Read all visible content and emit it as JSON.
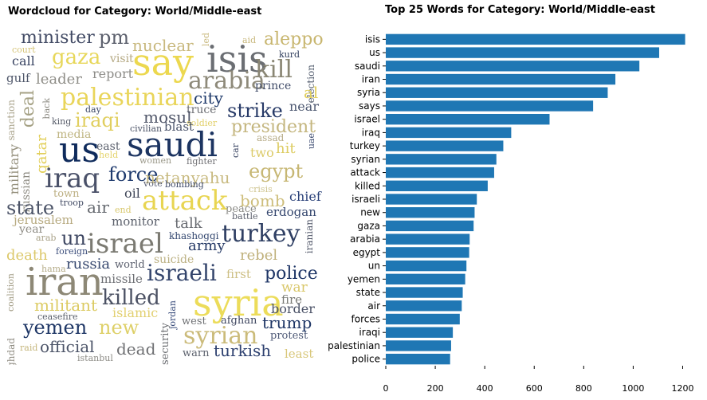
{
  "chart_data": [
    {
      "type": "wordcloud",
      "title": "Wordcloud for Category: World/Middle-east",
      "words": [
        {
          "text": "minister",
          "color": "#414a64"
        },
        {
          "text": "pm",
          "color": "#5b5f6c"
        },
        {
          "text": "nuclear",
          "color": "#c9b97f"
        },
        {
          "text": "led",
          "color": "#c9b97f"
        },
        {
          "text": "aid",
          "color": "#c9b97f"
        },
        {
          "text": "aleppo",
          "color": "#c8b66f"
        },
        {
          "text": "court",
          "color": "#d6c57a"
        },
        {
          "text": "gaza",
          "color": "#e7d75a"
        },
        {
          "text": "visit",
          "color": "#b4a882"
        },
        {
          "text": "say",
          "color": "#ecd84f"
        },
        {
          "text": "isis",
          "color": "#6b6e73"
        },
        {
          "text": "kurd",
          "color": "#2f3d5c"
        },
        {
          "text": "call",
          "color": "#3a4563"
        },
        {
          "text": "report",
          "color": "#8d8c88"
        },
        {
          "text": "kill",
          "color": "#8a8674"
        },
        {
          "text": "gulf",
          "color": "#4f576a"
        },
        {
          "text": "leader",
          "color": "#8f8e88"
        },
        {
          "text": "arabia",
          "color": "#8e8a7a"
        },
        {
          "text": "prince",
          "color": "#3f4b68"
        },
        {
          "text": "election",
          "color": "#4d5769"
        },
        {
          "text": "deal",
          "color": "#a5a184"
        },
        {
          "text": "palestinian",
          "color": "#e9d55a"
        },
        {
          "text": "city",
          "color": "#1f3a6b"
        },
        {
          "text": "al",
          "color": "#e2cf5d"
        },
        {
          "text": "sanction",
          "color": "#a8a28a"
        },
        {
          "text": "back",
          "color": "#8e8c84"
        },
        {
          "text": "day",
          "color": "#3a4665"
        },
        {
          "text": "truce",
          "color": "#6e7075"
        },
        {
          "text": "strike",
          "color": "#273a67"
        },
        {
          "text": "near",
          "color": "#4c5770"
        },
        {
          "text": "king",
          "color": "#585d6a"
        },
        {
          "text": "iraqi",
          "color": "#e1cf60"
        },
        {
          "text": "mosul",
          "color": "#51576a"
        },
        {
          "text": "soldier",
          "color": "#e2d06a"
        },
        {
          "text": "president",
          "color": "#c4b67f"
        },
        {
          "text": "qatar",
          "color": "#e2cf5a"
        },
        {
          "text": "civilian",
          "color": "#4d5568"
        },
        {
          "text": "blast",
          "color": "#4b546b"
        },
        {
          "text": "us",
          "color": "#0f2b5c"
        },
        {
          "text": "media",
          "color": "#bfb582"
        },
        {
          "text": "saudi",
          "color": "#1c3461"
        },
        {
          "text": "assad",
          "color": "#b6ab86"
        },
        {
          "text": "uae",
          "color": "#3b4a70"
        },
        {
          "text": "military",
          "color": "#948f7c"
        },
        {
          "text": "east",
          "color": "#5a5f6c"
        },
        {
          "text": "held",
          "color": "#e4d36a"
        },
        {
          "text": "car",
          "color": "#404a67"
        },
        {
          "text": "two",
          "color": "#dccb6a"
        },
        {
          "text": "hit",
          "color": "#ddcc62"
        },
        {
          "text": "women",
          "color": "#9a9889"
        },
        {
          "text": "fighter",
          "color": "#6f6f73"
        },
        {
          "text": "russian",
          "color": "#8d8b82"
        },
        {
          "text": "iraq",
          "color": "#4a5169"
        },
        {
          "text": "force",
          "color": "#1f3b6e"
        },
        {
          "text": "netanyahu",
          "color": "#c8ba80"
        },
        {
          "text": "egypt",
          "color": "#c7b774"
        },
        {
          "text": "vote",
          "color": "#5a6075"
        },
        {
          "text": "bombing",
          "color": "#3e4967"
        },
        {
          "text": "town",
          "color": "#bdb083"
        },
        {
          "text": "oil",
          "color": "#3f4557"
        },
        {
          "text": "attack",
          "color": "#e8d552"
        },
        {
          "text": "crisis",
          "color": "#cfc48f"
        },
        {
          "text": "chief",
          "color": "#2b427a"
        },
        {
          "text": "state",
          "color": "#4c5468"
        },
        {
          "text": "troop",
          "color": "#414a63"
        },
        {
          "text": "air",
          "color": "#666a70"
        },
        {
          "text": "end",
          "color": "#d8c86e"
        },
        {
          "text": "bomb",
          "color": "#cdbd7a"
        },
        {
          "text": "jerusalem",
          "color": "#b7aa80"
        },
        {
          "text": "peace",
          "color": "#8a8a86"
        },
        {
          "text": "monitor",
          "color": "#5c616c"
        },
        {
          "text": "talk",
          "color": "#676a70"
        },
        {
          "text": "battle",
          "color": "#5c606c"
        },
        {
          "text": "erdogan",
          "color": "#34466e"
        },
        {
          "text": "year",
          "color": "#8f8d86"
        },
        {
          "text": "arab",
          "color": "#a9a289"
        },
        {
          "text": "un",
          "color": "#3e4762"
        },
        {
          "text": "israel",
          "color": "#7b7a72"
        },
        {
          "text": "khashoggi",
          "color": "#33476f"
        },
        {
          "text": "turkey",
          "color": "#2f3f63"
        },
        {
          "text": "iranian",
          "color": "#505668"
        },
        {
          "text": "death",
          "color": "#dcc86a"
        },
        {
          "text": "foreign",
          "color": "#3a4c7a"
        },
        {
          "text": "army",
          "color": "#263a66"
        },
        {
          "text": "rebel",
          "color": "#bfb07a"
        },
        {
          "text": "russia",
          "color": "#36486f"
        },
        {
          "text": "world",
          "color": "#5a5f6d"
        },
        {
          "text": "suicide",
          "color": "#bcb183"
        },
        {
          "text": "hama",
          "color": "#b5ac89"
        },
        {
          "text": "coalition",
          "color": "#a6a08a"
        },
        {
          "text": "iran",
          "color": "#8d8876"
        },
        {
          "text": "missile",
          "color": "#6d6f74"
        },
        {
          "text": "israeli",
          "color": "#34456c"
        },
        {
          "text": "first",
          "color": "#cdbf84"
        },
        {
          "text": "police",
          "color": "#1e3566"
        },
        {
          "text": "war",
          "color": "#d9c76a"
        },
        {
          "text": "militant",
          "color": "#dccb63"
        },
        {
          "text": "killed",
          "color": "#4b5163"
        },
        {
          "text": "jordan",
          "color": "#3a4d7c"
        },
        {
          "text": "syria",
          "color": "#ecdc5a"
        },
        {
          "text": "fire",
          "color": "#787974"
        },
        {
          "text": "islamic",
          "color": "#e2d071"
        },
        {
          "text": "border",
          "color": "#4a5166"
        },
        {
          "text": "ceasefire",
          "color": "#5c616c"
        },
        {
          "text": "baghdad",
          "color": "#8f8c82"
        },
        {
          "text": "yemen",
          "color": "#1f3766"
        },
        {
          "text": "new",
          "color": "#ded069"
        },
        {
          "text": "west",
          "color": "#6e7073"
        },
        {
          "text": "afghan",
          "color": "#3f4760"
        },
        {
          "text": "trump",
          "color": "#1d3565"
        },
        {
          "text": "security",
          "color": "#6d6f73"
        },
        {
          "text": "syrian",
          "color": "#cbbb7a"
        },
        {
          "text": "protest",
          "color": "#4f5a77"
        },
        {
          "text": "raid",
          "color": "#c5b67c"
        },
        {
          "text": "official",
          "color": "#4c5468"
        },
        {
          "text": "dead",
          "color": "#6f7073"
        },
        {
          "text": "warn",
          "color": "#5c616d"
        },
        {
          "text": "turkish",
          "color": "#2e4170"
        },
        {
          "text": "least",
          "color": "#d8c77a"
        },
        {
          "text": "istanbul",
          "color": "#8d8c86"
        }
      ]
    },
    {
      "type": "bar",
      "orientation": "horizontal",
      "title": "Top 25 Words for Category: World/Middle-east",
      "xlabel": "",
      "ylabel": "",
      "xlim": [
        0,
        1250
      ],
      "xticks": [
        0,
        200,
        400,
        600,
        800,
        1000,
        1200
      ],
      "grid": false,
      "bar_color": "#1f77b4",
      "categories": [
        "isis",
        "us",
        "saudi",
        "iran",
        "syria",
        "says",
        "israel",
        "iraq",
        "turkey",
        "syrian",
        "attack",
        "killed",
        "israeli",
        "new",
        "gaza",
        "arabia",
        "egypt",
        "un",
        "yemen",
        "state",
        "air",
        "forces",
        "iraqi",
        "palestinian",
        "police"
      ],
      "values": [
        1210,
        1105,
        1025,
        928,
        897,
        838,
        662,
        507,
        475,
        447,
        438,
        412,
        368,
        359,
        355,
        339,
        337,
        326,
        321,
        311,
        307,
        299,
        271,
        264,
        260
      ]
    }
  ]
}
